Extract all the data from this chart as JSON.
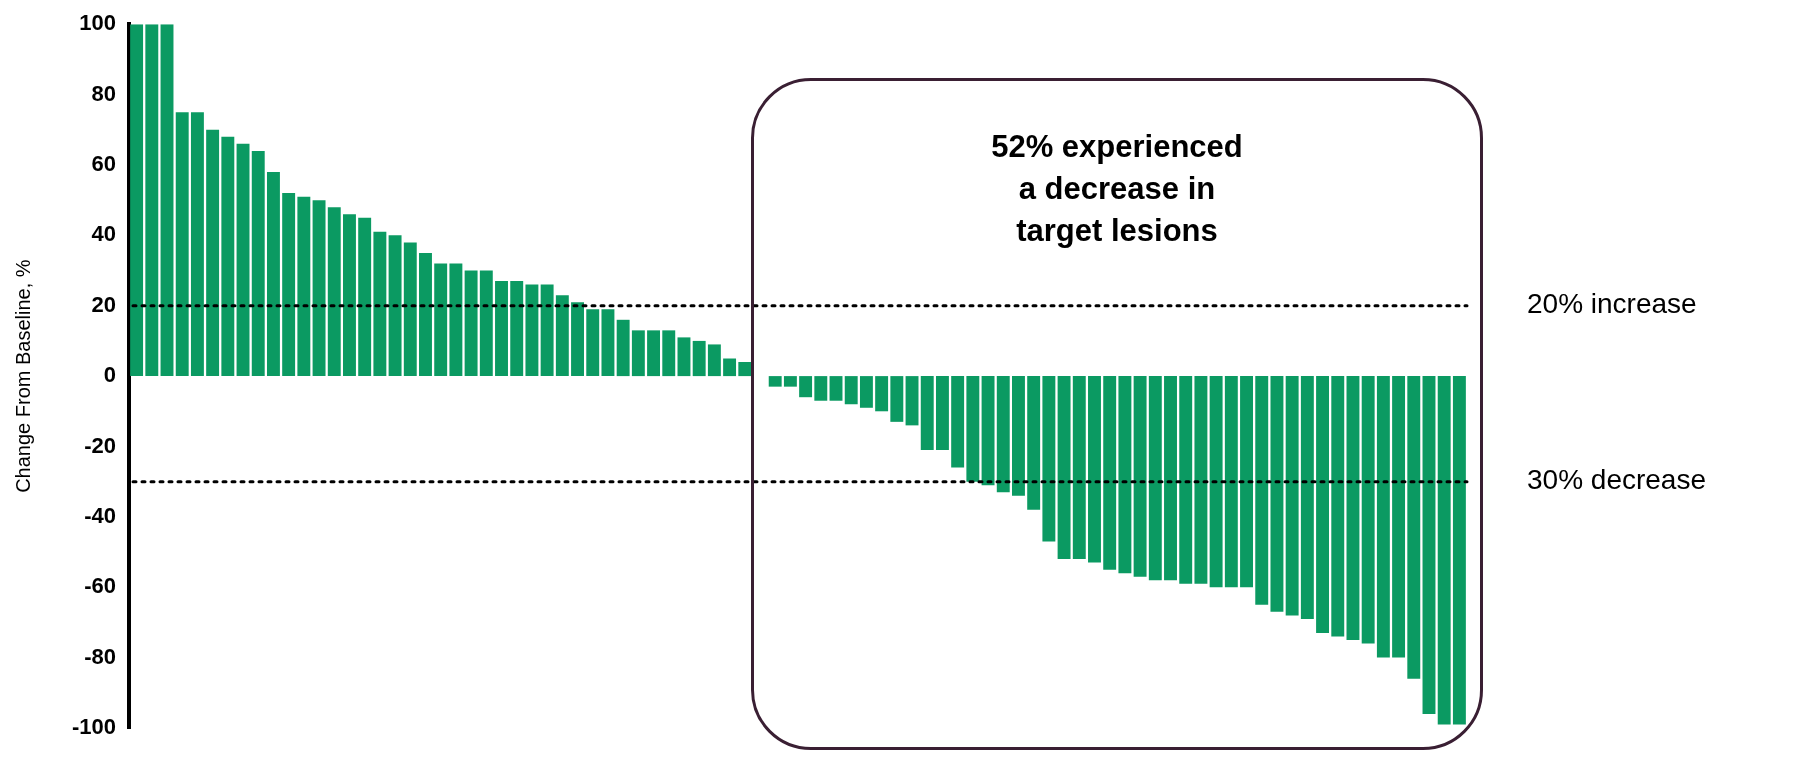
{
  "chart_data": {
    "type": "bar",
    "ylabel": "Change From Baseline, %",
    "categories": [
      null,
      null,
      null,
      null,
      null,
      null,
      null,
      null,
      null,
      null,
      null,
      null,
      null,
      null,
      null,
      null,
      null,
      null,
      null,
      null,
      null,
      null,
      null,
      null,
      null,
      null,
      null,
      null,
      null,
      null,
      null,
      null,
      null,
      null,
      null,
      null,
      null,
      null,
      null,
      null,
      null,
      null,
      null,
      null,
      null,
      null,
      null,
      null,
      null,
      null,
      null,
      null,
      null,
      null,
      null,
      null,
      null,
      null,
      null,
      null,
      null,
      null,
      null,
      null,
      null,
      null,
      null,
      null,
      null,
      null,
      null,
      null,
      null,
      null,
      null,
      null,
      null,
      null,
      null,
      null,
      null,
      null,
      null,
      null,
      null,
      null,
      null,
      null
    ],
    "values": [
      100,
      100,
      100,
      75,
      75,
      70,
      68,
      66,
      64,
      58,
      52,
      51,
      50,
      48,
      46,
      45,
      41,
      40,
      38,
      35,
      32,
      32,
      30,
      30,
      27,
      27,
      26,
      26,
      23,
      21,
      19,
      19,
      16,
      13,
      13,
      13,
      11,
      10,
      9,
      5,
      4,
      0,
      -3,
      -3,
      -6,
      -7,
      -7,
      -8,
      -9,
      -10,
      -13,
      -14,
      -21,
      -21,
      -26,
      -30,
      -31,
      -33,
      -34,
      -38,
      -47,
      -52,
      -52,
      -53,
      -55,
      -56,
      -57,
      -58,
      -58,
      -59,
      -59,
      -60,
      -60,
      -60,
      -65,
      -67,
      -68,
      -69,
      -73,
      -74,
      -75,
      -76,
      -80,
      -80,
      -86,
      -96,
      -99,
      -99
    ],
    "color": "#0b9a62",
    "ylim": [
      -100,
      100
    ],
    "yticks": [
      -100,
      -80,
      -60,
      -40,
      -20,
      0,
      20,
      40,
      60,
      80,
      100
    ],
    "grid": false,
    "legend": false,
    "ref_lines": [
      {
        "axis": "y",
        "value": 20,
        "label": "20% increase",
        "line_style": "dotted",
        "color": "#000000"
      },
      {
        "axis": "y",
        "value": -30,
        "label": "30% decrease",
        "line_style": "dotted",
        "color": "#000000"
      }
    ],
    "annotations": [
      "52% experienced\na decrease in\ntarget lesions"
    ]
  }
}
